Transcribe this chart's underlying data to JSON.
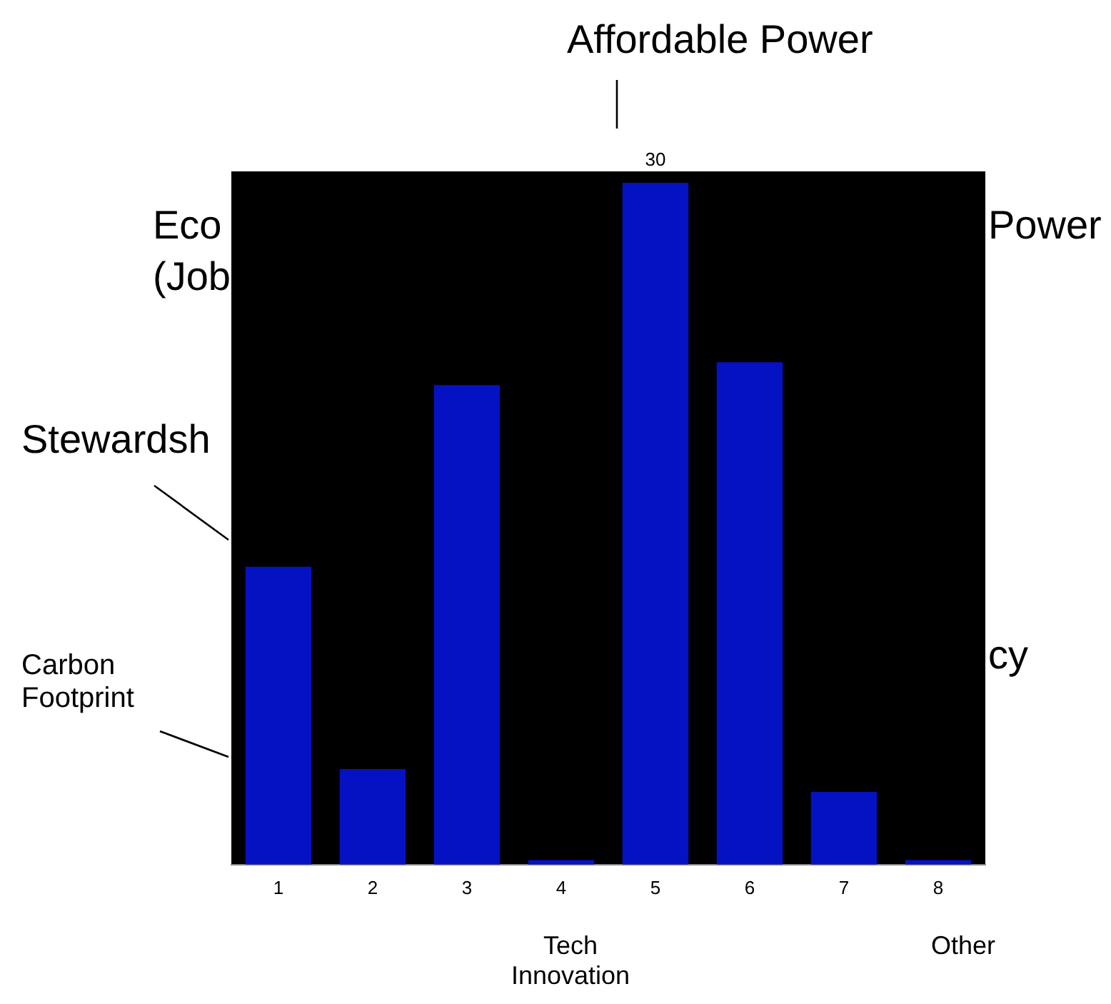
{
  "chart_data": {
    "type": "bar",
    "categories": [
      "1",
      "2",
      "3",
      "4",
      "5",
      "6",
      "7",
      "8"
    ],
    "values": [
      13.1,
      4.2,
      21.1,
      0.2,
      30,
      22.1,
      3.2,
      0.2
    ],
    "color": "#0412c4",
    "ylim": [
      0,
      30.5
    ],
    "value_labels": [
      null,
      null,
      null,
      null,
      "30",
      null,
      null,
      null
    ],
    "annotations": [
      "Affordable Power",
      "Eco",
      "(Job",
      "Power",
      "Stewardsh",
      "Carbon\nFootprint",
      "cy",
      "Tech\nInnovation",
      "Other"
    ]
  }
}
